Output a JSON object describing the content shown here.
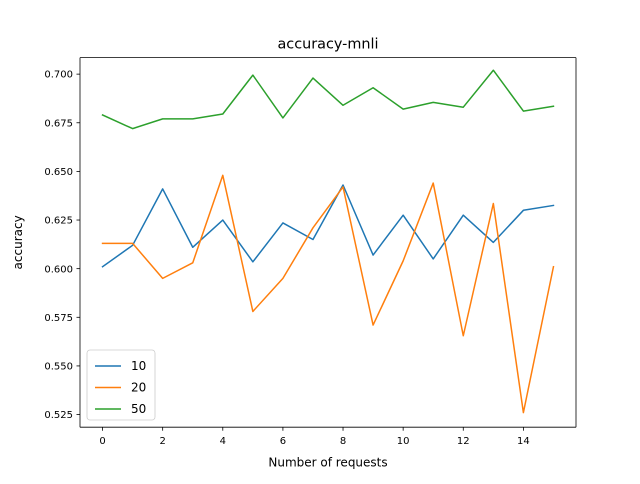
{
  "chart_data": {
    "type": "line",
    "title": "accuracy-mnli",
    "xlabel": "Number of requests",
    "ylabel": "accuracy",
    "xlim": [
      -0.75,
      15.75
    ],
    "ylim": [
      0.5185,
      0.7085
    ],
    "xticks": [
      0,
      2,
      4,
      6,
      8,
      10,
      12,
      14
    ],
    "xtick_labels": [
      "0",
      "2",
      "4",
      "6",
      "8",
      "10",
      "12",
      "14"
    ],
    "yticks": [
      0.525,
      0.55,
      0.575,
      0.6,
      0.625,
      0.65,
      0.675,
      0.7
    ],
    "ytick_labels": [
      "0.525",
      "0.550",
      "0.575",
      "0.600",
      "0.625",
      "0.650",
      "0.675",
      "0.700"
    ],
    "grid": false,
    "legend_position": "lower-left",
    "x": [
      0,
      1,
      2,
      3,
      4,
      5,
      6,
      7,
      8,
      9,
      10,
      11,
      12,
      13,
      14,
      15
    ],
    "series": [
      {
        "name": "10",
        "color": "#1f77b4",
        "values": [
          0.601,
          0.612,
          0.641,
          0.611,
          0.625,
          0.6035,
          0.6235,
          0.615,
          0.643,
          0.607,
          0.6275,
          0.605,
          0.6275,
          0.6135,
          0.63,
          0.6325
        ]
      },
      {
        "name": "20",
        "color": "#ff7f0e",
        "values": [
          0.613,
          0.613,
          0.595,
          0.603,
          0.648,
          0.578,
          0.595,
          0.621,
          0.642,
          0.571,
          0.604,
          0.644,
          0.5655,
          0.6335,
          0.526,
          0.601
        ]
      },
      {
        "name": "50",
        "color": "#2ca02c",
        "values": [
          0.679,
          0.672,
          0.677,
          0.677,
          0.6795,
          0.6995,
          0.6775,
          0.698,
          0.684,
          0.693,
          0.682,
          0.6855,
          0.683,
          0.702,
          0.681,
          0.6835
        ]
      }
    ]
  }
}
